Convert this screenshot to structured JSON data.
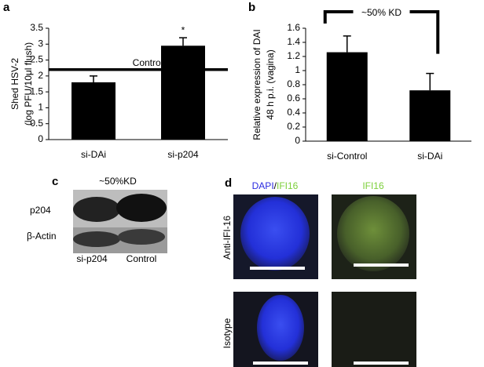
{
  "chart_data": [
    {
      "type": "bar",
      "panel": "a",
      "ylabel": [
        "Shed HSV-2",
        "(log PFU/10μl flush)"
      ],
      "categories": [
        "si-DAi",
        "si-p204"
      ],
      "values": [
        1.8,
        2.95
      ],
      "errors": [
        0.2,
        0.25
      ],
      "color": "#000000",
      "ylim": [
        0,
        3.5
      ],
      "yticks": [
        0,
        0.5,
        1,
        1.5,
        2,
        2.5,
        3,
        3.5
      ],
      "reference_line": {
        "value": 2.2,
        "label": "Control"
      },
      "annotation": "*"
    },
    {
      "type": "bar",
      "panel": "b",
      "ylabel": [
        "Relative expression of DAI",
        "48 h p.i. (vagina)"
      ],
      "categories": [
        "si-Control",
        "si-DAi"
      ],
      "values": [
        1.26,
        0.72
      ],
      "errors": [
        0.23,
        0.24
      ],
      "color": "#000000",
      "ylim": [
        0,
        1.6
      ],
      "yticks": [
        0,
        0.2,
        0.4,
        0.6,
        0.8,
        1,
        1.2,
        1.4,
        1.6
      ],
      "annotation": "~50% KD"
    }
  ],
  "blot": {
    "panel": "c",
    "title": "~50%KD",
    "rows": [
      "p204",
      "β-Actin"
    ],
    "lanes": [
      "si-p204",
      "Control"
    ]
  },
  "micrographs": {
    "panel": "d",
    "columns": [
      [
        "DAPI",
        "/",
        "IFI16"
      ],
      [
        "IFI16"
      ]
    ],
    "rows": [
      "Anti-IFI-16",
      "Isotype"
    ]
  }
}
